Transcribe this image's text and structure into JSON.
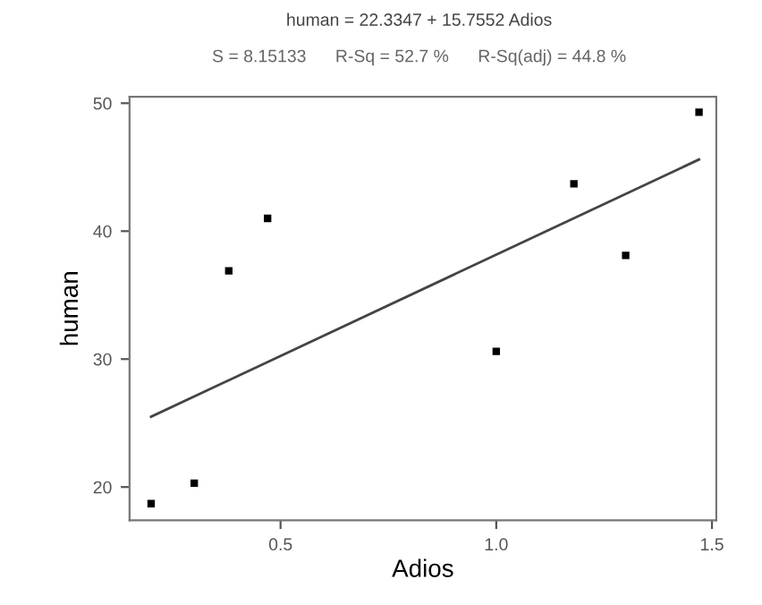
{
  "chart_data": {
    "type": "scatter",
    "title": "human = 22.3347 + 15.7552 Adios",
    "subtitle": "S = 8.15133      R-Sq = 52.7 %      R-Sq(adj) = 44.8 %",
    "xlabel": "Adios",
    "ylabel": "human",
    "series": [
      {
        "color": "#000000",
        "marker": "square",
        "x": [
          0.2,
          0.3,
          0.38,
          0.47,
          1.0,
          1.18,
          1.3,
          1.47
        ],
        "values": [
          18.7,
          20.3,
          36.9,
          41.0,
          30.6,
          43.7,
          38.1,
          49.3
        ]
      },
      {
        "type": "line",
        "color": "#444444",
        "marker": "none",
        "line_style": "solid",
        "x": [
          0.2,
          1.47
        ],
        "values": [
          25.5,
          45.6
        ]
      }
    ],
    "xlim": [
      0.15,
      1.51
    ],
    "ylim": [
      17.4,
      50.5
    ],
    "xticks": [
      0.5,
      {
        "value": 1.0,
        "label": "1.0"
      },
      1.5
    ],
    "yticks": [
      20,
      30,
      40,
      50
    ],
    "grid": false,
    "legend": false
  }
}
